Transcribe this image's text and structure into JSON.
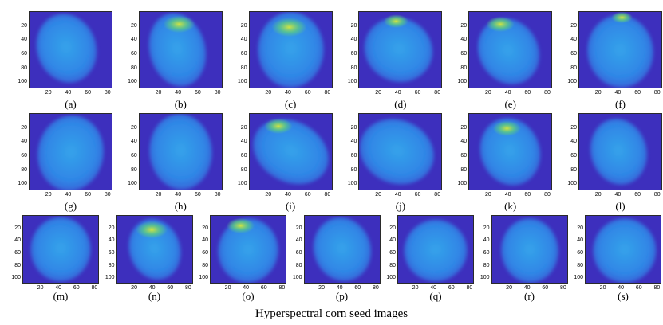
{
  "caption": "Hyperspectral corn seed images",
  "panels": [
    {
      "label": "(a)",
      "y_ticks": [
        "20",
        "40",
        "60",
        "80",
        "100"
      ],
      "x_ticks": [
        "20",
        "40",
        "60",
        "80"
      ]
    },
    {
      "label": "(b)",
      "y_ticks": [
        "20",
        "40",
        "60",
        "80",
        "100"
      ],
      "x_ticks": [
        "20",
        "40",
        "60",
        "80"
      ]
    },
    {
      "label": "(c)",
      "y_ticks": [
        "20",
        "40",
        "60",
        "80",
        "100"
      ],
      "x_ticks": [
        "20",
        "40",
        "60",
        "80"
      ]
    },
    {
      "label": "(d)",
      "y_ticks": [
        "20",
        "40",
        "60",
        "80",
        "100"
      ],
      "x_ticks": [
        "20",
        "40",
        "60",
        "80"
      ]
    },
    {
      "label": "(e)",
      "y_ticks": [
        "20",
        "40",
        "60",
        "80",
        "100"
      ],
      "x_ticks": [
        "20",
        "40",
        "60",
        "80"
      ]
    },
    {
      "label": "(f)",
      "y_ticks": [
        "20",
        "40",
        "60",
        "80",
        "100"
      ],
      "x_ticks": [
        "20",
        "40",
        "60",
        "80"
      ]
    },
    {
      "label": "(g)",
      "y_ticks": [
        "20",
        "40",
        "60",
        "80",
        "100"
      ],
      "x_ticks": [
        "20",
        "40",
        "60",
        "80"
      ]
    },
    {
      "label": "(h)",
      "y_ticks": [
        "20",
        "40",
        "60",
        "80",
        "100"
      ],
      "x_ticks": [
        "20",
        "40",
        "60",
        "80"
      ]
    },
    {
      "label": "(i)",
      "y_ticks": [
        "20",
        "40",
        "60",
        "80",
        "100"
      ],
      "x_ticks": [
        "20",
        "40",
        "60",
        "80"
      ]
    },
    {
      "label": "(j)",
      "y_ticks": [
        "20",
        "40",
        "60",
        "80",
        "100"
      ],
      "x_ticks": [
        "20",
        "40",
        "60",
        "80"
      ]
    },
    {
      "label": "(k)",
      "y_ticks": [
        "20",
        "40",
        "60",
        "80",
        "100"
      ],
      "x_ticks": [
        "20",
        "40",
        "60",
        "80"
      ]
    },
    {
      "label": "(l)",
      "y_ticks": [
        "20",
        "40",
        "60",
        "80",
        "100"
      ],
      "x_ticks": [
        "20",
        "40",
        "60",
        "80"
      ]
    },
    {
      "label": "(m)",
      "y_ticks": [
        "20",
        "40",
        "60",
        "80",
        "100"
      ],
      "x_ticks": [
        "20",
        "40",
        "60",
        "80"
      ]
    },
    {
      "label": "(n)",
      "y_ticks": [
        "20",
        "40",
        "60",
        "80",
        "100"
      ],
      "x_ticks": [
        "20",
        "40",
        "60",
        "80"
      ]
    },
    {
      "label": "(o)",
      "y_ticks": [
        "20",
        "40",
        "60",
        "80",
        "100"
      ],
      "x_ticks": [
        "20",
        "40",
        "60",
        "80"
      ]
    },
    {
      "label": "(p)",
      "y_ticks": [
        "20",
        "40",
        "60",
        "80",
        "100"
      ],
      "x_ticks": [
        "20",
        "40",
        "60",
        "80"
      ]
    },
    {
      "label": "(q)",
      "y_ticks": [
        "20",
        "40",
        "60",
        "80",
        "100"
      ],
      "x_ticks": [
        "20",
        "40",
        "60",
        "80"
      ]
    },
    {
      "label": "(r)",
      "y_ticks": [
        "20",
        "40",
        "60",
        "80",
        "100"
      ],
      "x_ticks": [
        "20",
        "40",
        "60",
        "80"
      ]
    },
    {
      "label": "(s)",
      "y_ticks": [
        "20",
        "40",
        "60",
        "80",
        "100"
      ],
      "x_ticks": [
        "20",
        "40",
        "60",
        "80"
      ]
    }
  ],
  "colors": {
    "background": "#3d2fbd",
    "seed_body": "#2f86e6",
    "seed_edge": "#3a5fd6",
    "seed_core": "#35a3ea",
    "hotspot_inner": "#d8e83a",
    "hotspot_outer": "#5fd17a"
  }
}
